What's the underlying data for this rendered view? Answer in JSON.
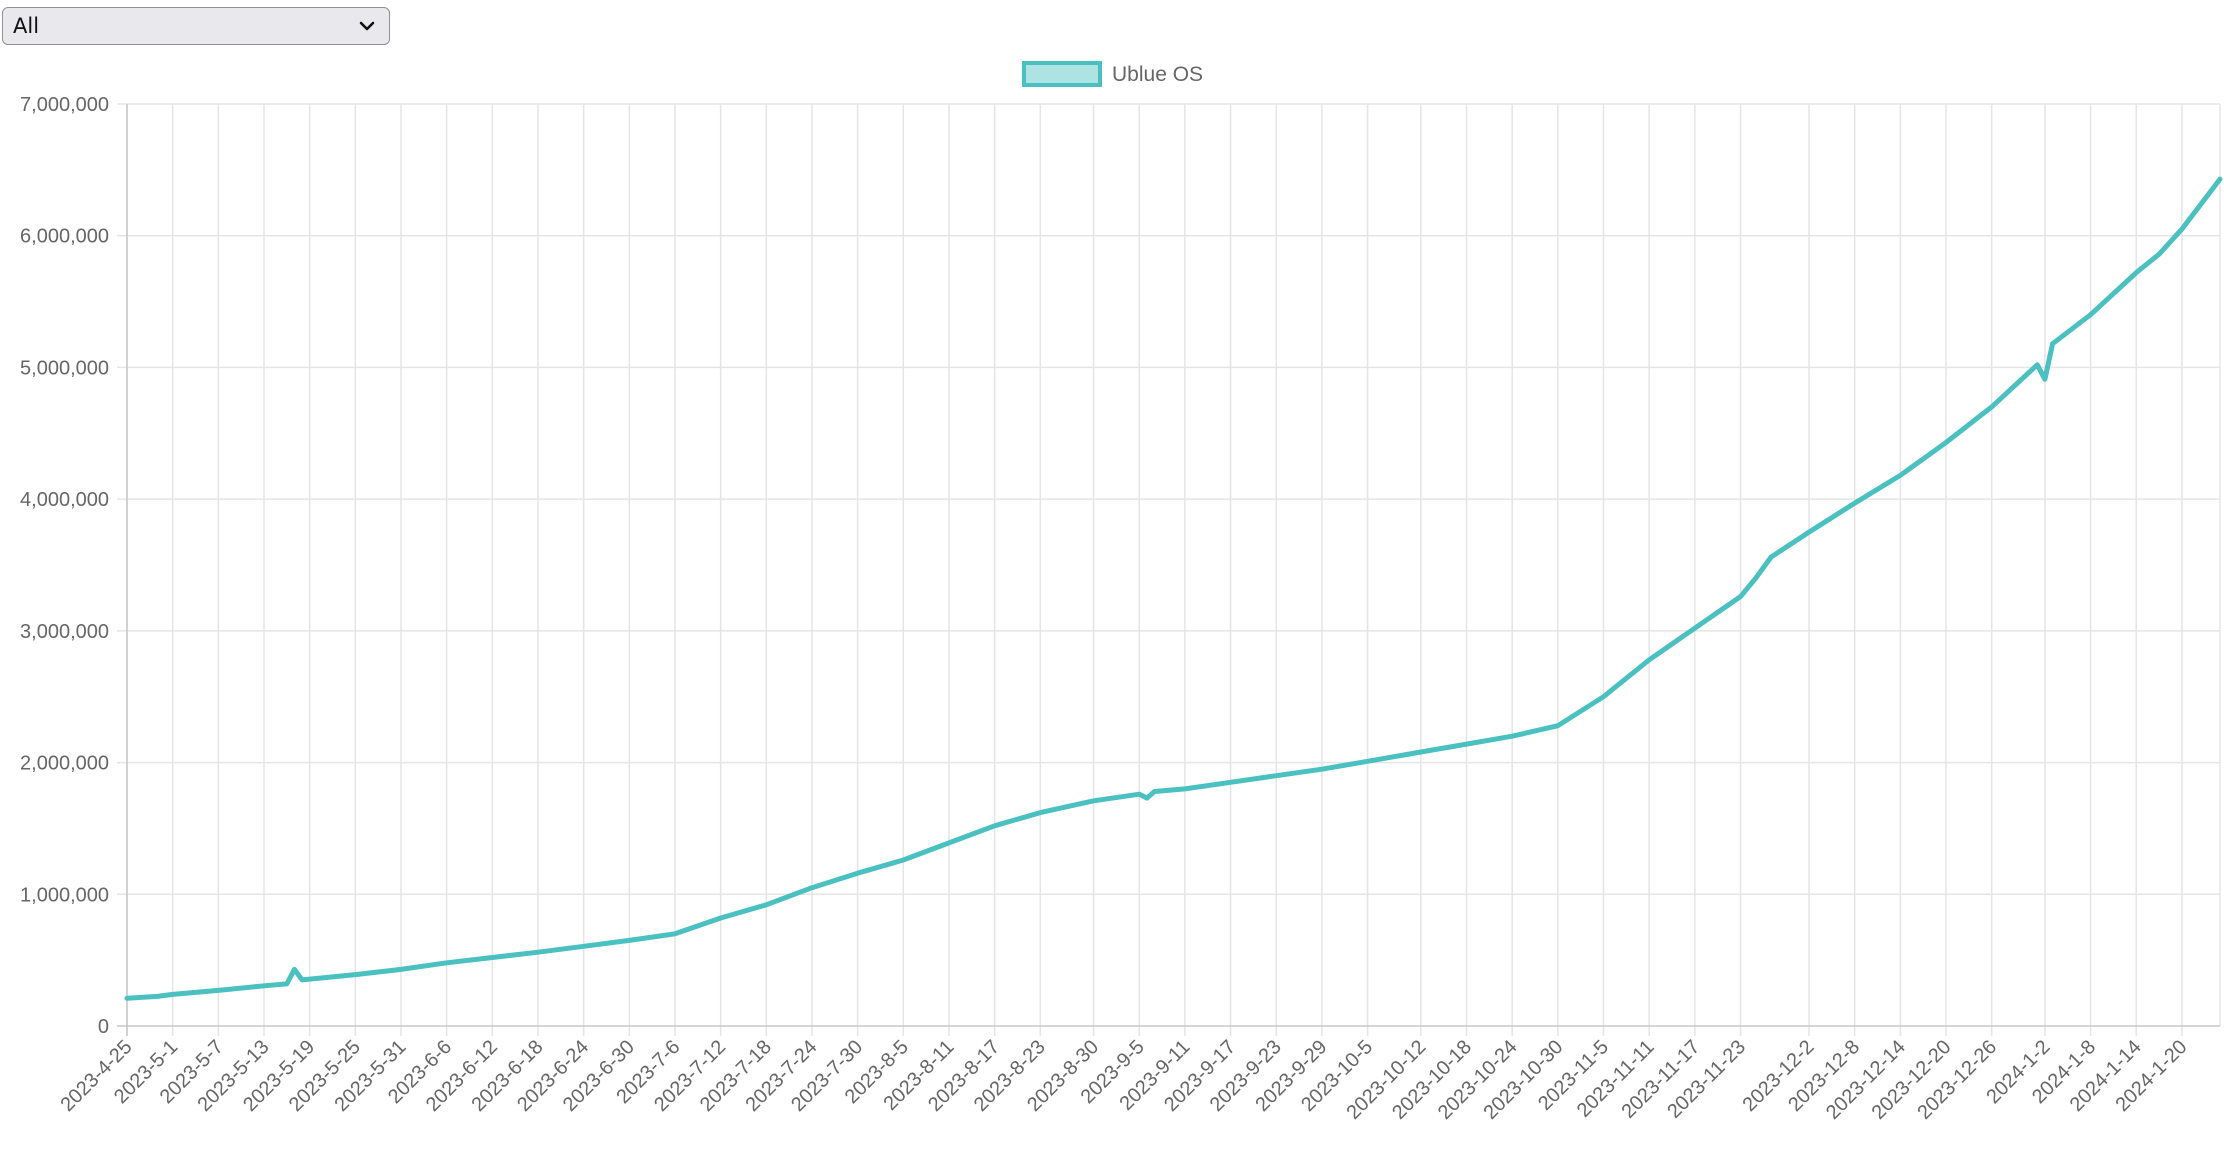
{
  "filter": {
    "selected": "All"
  },
  "chart_data": {
    "type": "line",
    "series": [
      {
        "name": "Ublue OS",
        "color": "#4bc0c0",
        "points": [
          [
            "2023-4-25",
            210000
          ],
          [
            "2023-4-29",
            225000
          ],
          [
            "2023-5-1",
            240000
          ],
          [
            "2023-5-7",
            270000
          ],
          [
            "2023-5-13",
            305000
          ],
          [
            "2023-5-16",
            320000
          ],
          [
            "2023-5-17",
            430000
          ],
          [
            "2023-5-18",
            350000
          ],
          [
            "2023-5-25",
            390000
          ],
          [
            "2023-5-31",
            430000
          ],
          [
            "2023-6-6",
            480000
          ],
          [
            "2023-6-12",
            520000
          ],
          [
            "2023-6-18",
            560000
          ],
          [
            "2023-6-24",
            605000
          ],
          [
            "2023-6-30",
            650000
          ],
          [
            "2023-7-6",
            700000
          ],
          [
            "2023-7-12",
            820000
          ],
          [
            "2023-7-18",
            920000
          ],
          [
            "2023-7-24",
            1050000
          ],
          [
            "2023-7-30",
            1160000
          ],
          [
            "2023-8-5",
            1260000
          ],
          [
            "2023-8-11",
            1390000
          ],
          [
            "2023-8-17",
            1520000
          ],
          [
            "2023-8-23",
            1620000
          ],
          [
            "2023-8-30",
            1710000
          ],
          [
            "2023-9-5",
            1760000
          ],
          [
            "2023-9-6",
            1730000
          ],
          [
            "2023-9-7",
            1780000
          ],
          [
            "2023-9-11",
            1800000
          ],
          [
            "2023-9-17",
            1850000
          ],
          [
            "2023-9-23",
            1900000
          ],
          [
            "2023-9-29",
            1950000
          ],
          [
            "2023-10-5",
            2010000
          ],
          [
            "2023-10-12",
            2080000
          ],
          [
            "2023-10-18",
            2140000
          ],
          [
            "2023-10-24",
            2200000
          ],
          [
            "2023-10-30",
            2280000
          ],
          [
            "2023-11-5",
            2500000
          ],
          [
            "2023-11-11",
            2780000
          ],
          [
            "2023-11-17",
            3020000
          ],
          [
            "2023-11-23",
            3260000
          ],
          [
            "2023-11-25",
            3400000
          ],
          [
            "2023-11-27",
            3560000
          ],
          [
            "2023-12-2",
            3750000
          ],
          [
            "2023-12-8",
            3970000
          ],
          [
            "2023-12-14",
            4180000
          ],
          [
            "2023-12-20",
            4430000
          ],
          [
            "2023-12-26",
            4700000
          ],
          [
            "2024-1-1",
            5020000
          ],
          [
            "2024-1-2",
            4910000
          ],
          [
            "2024-1-3",
            5180000
          ],
          [
            "2024-1-8",
            5400000
          ],
          [
            "2024-1-14",
            5720000
          ],
          [
            "2024-1-17",
            5860000
          ],
          [
            "2024-1-20",
            6050000
          ],
          [
            "2024-1-25",
            6430000
          ]
        ]
      }
    ],
    "x_tick_labels": [
      "2023-4-25",
      "2023-5-1",
      "2023-5-7",
      "2023-5-13",
      "2023-5-19",
      "2023-5-25",
      "2023-5-31",
      "2023-6-6",
      "2023-6-12",
      "2023-6-18",
      "2023-6-24",
      "2023-6-30",
      "2023-7-6",
      "2023-7-12",
      "2023-7-18",
      "2023-7-24",
      "2023-7-30",
      "2023-8-5",
      "2023-8-11",
      "2023-8-17",
      "2023-8-23",
      "2023-8-30",
      "2023-9-5",
      "2023-9-11",
      "2023-9-17",
      "2023-9-23",
      "2023-9-29",
      "2023-10-5",
      "2023-10-12",
      "2023-10-18",
      "2023-10-24",
      "2023-10-30",
      "2023-11-5",
      "2023-11-11",
      "2023-11-17",
      "2023-11-23",
      "2023-12-2",
      "2023-12-8",
      "2023-12-14",
      "2023-12-20",
      "2023-12-26",
      "2024-1-2",
      "2024-1-8",
      "2024-1-14",
      "2024-1-20"
    ],
    "y_tick_labels": [
      "0",
      "1,000,000",
      "2,000,000",
      "3,000,000",
      "4,000,000",
      "5,000,000",
      "6,000,000",
      "7,000,000"
    ],
    "ylim": [
      0,
      7000000
    ],
    "x_range": [
      "2023-4-25",
      "2024-1-25"
    ],
    "grid": true,
    "legend_position": "top"
  }
}
